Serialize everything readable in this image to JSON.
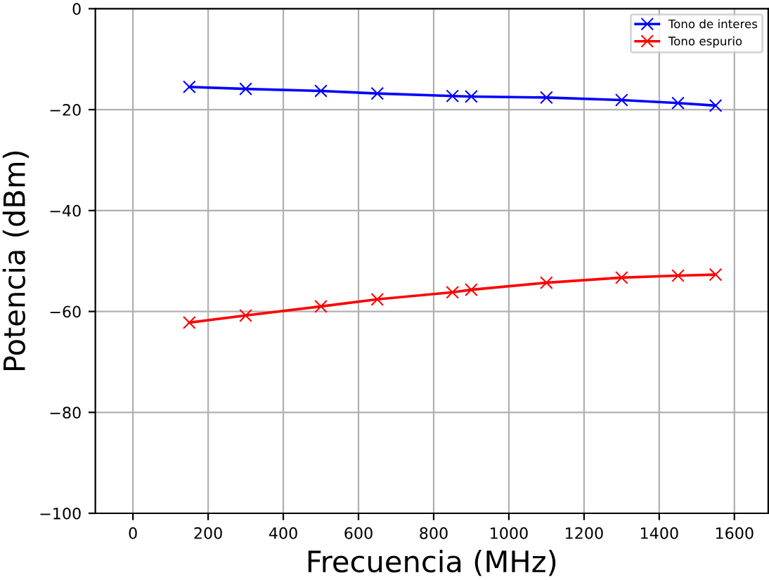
{
  "chart_data": {
    "type": "line",
    "xlabel": "Frecuencia (MHz)",
    "ylabel": "Potencia (dBm)",
    "x": [
      150,
      300,
      500,
      650,
      850,
      900,
      1100,
      1300,
      1450,
      1550
    ],
    "series": [
      {
        "name": "Tono de interes",
        "color": "#0000ff",
        "values": [
          -15.5,
          -15.9,
          -16.3,
          -16.8,
          -17.3,
          -17.4,
          -17.6,
          -18.1,
          -18.7,
          -19.2
        ]
      },
      {
        "name": "Tono espurio",
        "color": "#ff0000",
        "values": [
          -62.2,
          -60.8,
          -59.0,
          -57.6,
          -56.2,
          -55.7,
          -54.3,
          -53.3,
          -52.9,
          -52.7
        ]
      }
    ],
    "xlim": [
      -100,
      1690
    ],
    "ylim": [
      -100,
      0
    ],
    "xticks": [
      0,
      200,
      400,
      600,
      800,
      1000,
      1200,
      1400,
      1600
    ],
    "yticks": [
      {
        "value": -100,
        "label": "−100"
      },
      {
        "value": -80,
        "label": "−80"
      },
      {
        "value": -60,
        "label": "−60"
      },
      {
        "value": -40,
        "label": "−40"
      },
      {
        "value": -20,
        "label": "−20"
      },
      0
    ],
    "grid": true,
    "legend": "top right",
    "marker": "cross",
    "line_style": "solid"
  }
}
